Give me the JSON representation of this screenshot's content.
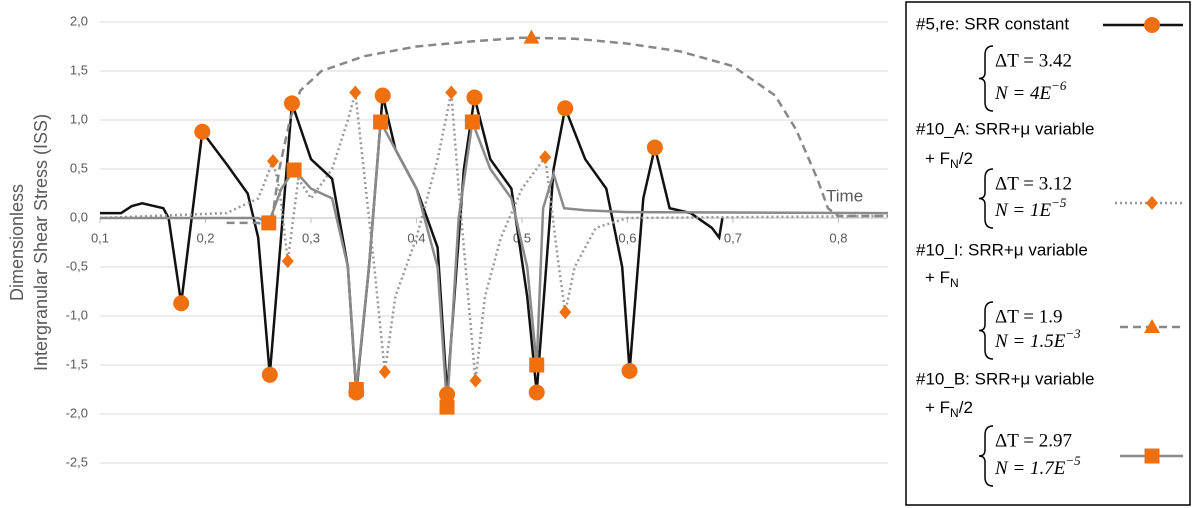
{
  "chart_data": {
    "type": "line",
    "ylabel": [
      "Dimensionless",
      "Intergranular Shear Stress (ISS)"
    ],
    "annotation": "Time",
    "xlim": [
      0.1,
      0.847
    ],
    "ylim": [
      -2.5,
      2.0
    ],
    "xticks": [
      {
        "value": 0.1,
        "label": "0,1"
      },
      {
        "value": 0.2,
        "label": "0,2"
      },
      {
        "value": 0.3,
        "label": "0,3"
      },
      {
        "value": 0.4,
        "label": "0,4"
      },
      {
        "value": 0.5,
        "label": "0,5"
      },
      {
        "value": 0.6,
        "label": "0,6"
      },
      {
        "value": 0.7,
        "label": "0,7"
      },
      {
        "value": 0.8,
        "label": "0,8"
      }
    ],
    "yticks": [
      {
        "value": 2,
        "label": "2,0"
      },
      {
        "value": 1.5,
        "label": "1,5"
      },
      {
        "value": 1,
        "label": "1,0"
      },
      {
        "value": 0.5,
        "label": "0,5"
      },
      {
        "value": 0,
        "label": "0,0"
      },
      {
        "value": -0.5,
        "label": "-0,5"
      },
      {
        "value": -1,
        "label": "-1,0"
      },
      {
        "value": -1.5,
        "label": "-1,5"
      },
      {
        "value": -2,
        "label": "-2,0"
      },
      {
        "value": -2.5,
        "label": "-2,5"
      }
    ],
    "grid": true,
    "marker_color": "#f07010",
    "series": [
      {
        "name": "#5,re: SRR constant",
        "color": "#111111",
        "dash": "solid",
        "marker": "circle",
        "delta_t": "ΔT = 3.42",
        "n_base": "N = 4E",
        "n_exp": "−6",
        "x": [
          0.1,
          0.12,
          0.13,
          0.14,
          0.16,
          0.165,
          0.177,
          0.197,
          0.22,
          0.24,
          0.25,
          0.261,
          0.282,
          0.3,
          0.32,
          0.335,
          0.343,
          0.355,
          0.368,
          0.38,
          0.4,
          0.42,
          0.429,
          0.445,
          0.455,
          0.47,
          0.49,
          0.505,
          0.514,
          0.53,
          0.541,
          0.56,
          0.58,
          0.595,
          0.602,
          0.615,
          0.626,
          0.64,
          0.66,
          0.68,
          0.687,
          0.69
        ],
        "values": [
          0.05,
          0.05,
          0.12,
          0.15,
          0.1,
          0,
          -0.87,
          0.88,
          0.55,
          0.25,
          -0.2,
          -1.6,
          1.17,
          0.6,
          0.4,
          -0.5,
          -1.78,
          -0.5,
          1.25,
          0.7,
          0.3,
          -0.3,
          -1.8,
          0.5,
          1.23,
          0.6,
          0.3,
          -0.8,
          -1.78,
          0.5,
          1.12,
          0.6,
          0.3,
          -0.5,
          -1.56,
          0.2,
          0.72,
          0.1,
          0.05,
          -0.1,
          -0.2,
          0
        ],
        "markers": {
          "x": [
            0.177,
            0.197,
            0.261,
            0.282,
            0.343,
            0.368,
            0.429,
            0.455,
            0.514,
            0.541,
            0.602,
            0.626
          ],
          "values": [
            -0.87,
            0.88,
            -1.6,
            1.17,
            -1.78,
            1.25,
            -1.8,
            1.23,
            -1.78,
            1.12,
            -1.56,
            0.72
          ]
        }
      },
      {
        "name": "#10_A: SRR+μ variable",
        "name_line2": {
          "text": "+ F",
          "sub": "N",
          "after": "/2"
        },
        "color": "#999999",
        "dash": "dotted",
        "marker": "diamond",
        "delta_t": "ΔT = 3.12",
        "n_base": "N = 1E",
        "n_exp": "−5",
        "x": [
          0.1,
          0.22,
          0.25,
          0.264,
          0.27,
          0.278,
          0.288,
          0.3,
          0.32,
          0.335,
          0.342,
          0.35,
          0.36,
          0.37,
          0.38,
          0.4,
          0.42,
          0.433,
          0.44,
          0.456,
          0.465,
          0.48,
          0.5,
          0.522,
          0.527,
          0.535,
          0.541,
          0.55,
          0.57,
          0.6,
          0.847
        ],
        "values": [
          0,
          0.05,
          0.2,
          0.58,
          0.3,
          -0.44,
          0.4,
          0.2,
          0.5,
          1.0,
          1.28,
          0.5,
          -0.5,
          -1.57,
          -0.8,
          -0.2,
          0.6,
          1.28,
          0.3,
          -1.66,
          -0.8,
          -0.2,
          0.3,
          0.62,
          0.2,
          -0.5,
          -0.96,
          -0.5,
          -0.1,
          0,
          0.02
        ],
        "markers": {
          "x": [
            0.264,
            0.278,
            0.342,
            0.37,
            0.433,
            0.456,
            0.522,
            0.541
          ],
          "values": [
            0.58,
            -0.44,
            1.28,
            -1.57,
            1.28,
            -1.66,
            0.62,
            -0.96
          ]
        }
      },
      {
        "name": "#10_I: SRR+μ variable",
        "name_line2": {
          "text": "+ F",
          "sub": "N"
        },
        "color": "#888888",
        "dash": "dashed",
        "marker": "triangle",
        "delta_t": "ΔT = 1.9",
        "n_base": "N = 1.5E",
        "n_exp": "−3",
        "x": [
          0.22,
          0.25,
          0.262,
          0.27,
          0.28,
          0.29,
          0.31,
          0.35,
          0.4,
          0.45,
          0.5,
          0.55,
          0.6,
          0.65,
          0.7,
          0.74,
          0.76,
          0.78,
          0.79,
          0.8,
          0.847
        ],
        "values": [
          -0.05,
          -0.05,
          -0.1,
          0.5,
          1.0,
          1.3,
          1.5,
          1.65,
          1.75,
          1.8,
          1.84,
          1.83,
          1.78,
          1.7,
          1.55,
          1.25,
          0.9,
          0.4,
          0.1,
          0.02,
          0.02
        ],
        "markers": {
          "x": [
            0.509
          ],
          "values": [
            1.84
          ]
        }
      },
      {
        "name": "#10_B: SRR+μ variable",
        "name_line2": {
          "text": "+ F",
          "sub": "N",
          "after": "/2"
        },
        "color": "#8a8a8a",
        "dash": "solid",
        "marker": "square",
        "delta_t": "ΔT = 2.97",
        "n_base": "N = 1.7E",
        "n_exp": "−5",
        "x": [
          0.1,
          0.25,
          0.26,
          0.272,
          0.284,
          0.3,
          0.32,
          0.335,
          0.343,
          0.355,
          0.366,
          0.38,
          0.4,
          0.42,
          0.429,
          0.44,
          0.453,
          0.47,
          0.49,
          0.505,
          0.514,
          0.52,
          0.53,
          0.54,
          0.56,
          0.6,
          0.847
        ],
        "values": [
          0,
          0,
          -0.05,
          0.3,
          0.49,
          0.3,
          0.2,
          -0.5,
          -1.75,
          -0.5,
          0.98,
          0.7,
          0.3,
          -0.5,
          -1.93,
          0,
          0.98,
          0.5,
          0.2,
          -0.5,
          -1.5,
          0.1,
          0.45,
          0.1,
          0.08,
          0.06,
          0.05
        ],
        "markers": {
          "x": [
            0.26,
            0.284,
            0.343,
            0.366,
            0.429,
            0.453,
            0.514
          ],
          "values": [
            -0.05,
            0.49,
            -1.75,
            0.98,
            -1.93,
            0.98,
            -1.5
          ]
        }
      }
    ]
  }
}
